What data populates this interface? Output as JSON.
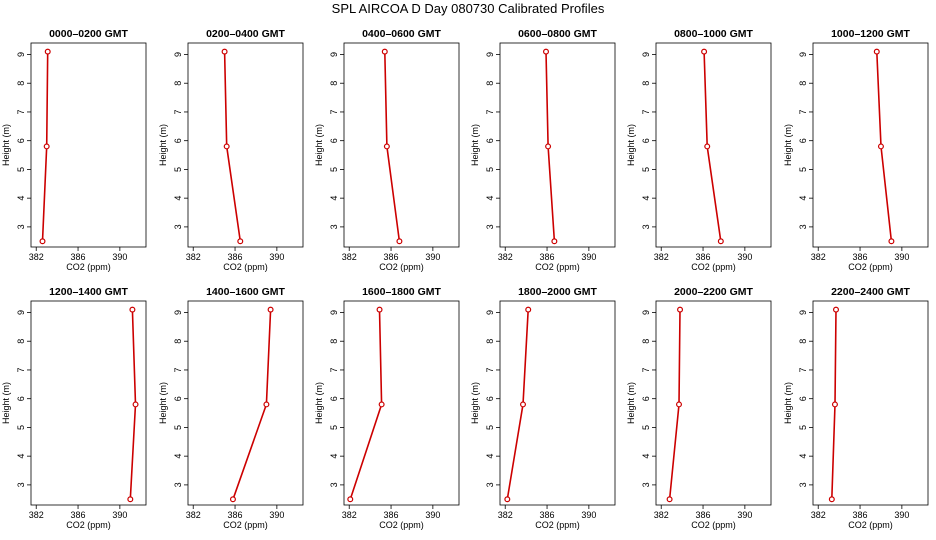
{
  "title": "SPL AIRCOA D  Day 080730  Calibrated Profiles",
  "chart_data": [
    {
      "type": "line",
      "title": "0000–0200 GMT",
      "xlabel": "CO2 (ppm)",
      "ylabel": "Height (m)",
      "xlim": [
        381.5,
        392.5
      ],
      "ylim": [
        2.3,
        9.4
      ],
      "xticks": [
        382,
        386,
        390
      ],
      "yticks": [
        3,
        4,
        5,
        6,
        7,
        8,
        9
      ],
      "series": [
        {
          "x": [
            382.6,
            383.0,
            383.1
          ],
          "y": [
            2.5,
            5.8,
            9.1
          ]
        }
      ]
    },
    {
      "type": "line",
      "title": "0200–0400 GMT",
      "xlabel": "CO2 (ppm)",
      "ylabel": "Height (m)",
      "xlim": [
        381.5,
        392.5
      ],
      "ylim": [
        2.3,
        9.4
      ],
      "xticks": [
        382,
        386,
        390
      ],
      "yticks": [
        3,
        4,
        5,
        6,
        7,
        8,
        9
      ],
      "series": [
        {
          "x": [
            386.5,
            385.2,
            385.0
          ],
          "y": [
            2.5,
            5.8,
            9.1
          ]
        }
      ]
    },
    {
      "type": "line",
      "title": "0400–0600 GMT",
      "xlabel": "CO2 (ppm)",
      "ylabel": "Height (m)",
      "xlim": [
        381.5,
        392.5
      ],
      "ylim": [
        2.3,
        9.4
      ],
      "xticks": [
        382,
        386,
        390
      ],
      "yticks": [
        3,
        4,
        5,
        6,
        7,
        8,
        9
      ],
      "series": [
        {
          "x": [
            386.8,
            385.6,
            385.4
          ],
          "y": [
            2.5,
            5.8,
            9.1
          ]
        }
      ]
    },
    {
      "type": "line",
      "title": "0600–0800 GMT",
      "xlabel": "CO2 (ppm)",
      "ylabel": "Height (m)",
      "xlim": [
        381.5,
        392.5
      ],
      "ylim": [
        2.3,
        9.4
      ],
      "xticks": [
        382,
        386,
        390
      ],
      "yticks": [
        3,
        4,
        5,
        6,
        7,
        8,
        9
      ],
      "series": [
        {
          "x": [
            386.7,
            386.1,
            385.9
          ],
          "y": [
            2.5,
            5.8,
            9.1
          ]
        }
      ]
    },
    {
      "type": "line",
      "title": "0800–1000 GMT",
      "xlabel": "CO2 (ppm)",
      "ylabel": "Height (m)",
      "xlim": [
        381.5,
        392.5
      ],
      "ylim": [
        2.3,
        9.4
      ],
      "xticks": [
        382,
        386,
        390
      ],
      "yticks": [
        3,
        4,
        5,
        6,
        7,
        8,
        9
      ],
      "series": [
        {
          "x": [
            387.7,
            386.4,
            386.1
          ],
          "y": [
            2.5,
            5.8,
            9.1
          ]
        }
      ]
    },
    {
      "type": "line",
      "title": "1000–1200 GMT",
      "xlabel": "CO2 (ppm)",
      "ylabel": "Height (m)",
      "xlim": [
        381.5,
        392.5
      ],
      "ylim": [
        2.3,
        9.4
      ],
      "xticks": [
        382,
        386,
        390
      ],
      "yticks": [
        3,
        4,
        5,
        6,
        7,
        8,
        9
      ],
      "series": [
        {
          "x": [
            389.0,
            388.0,
            387.6
          ],
          "y": [
            2.5,
            5.8,
            9.1
          ]
        }
      ]
    },
    {
      "type": "line",
      "title": "1200–1400 GMT",
      "xlabel": "CO2 (ppm)",
      "ylabel": "Height (m)",
      "xlim": [
        381.5,
        392.5
      ],
      "ylim": [
        2.3,
        9.4
      ],
      "xticks": [
        382,
        386,
        390
      ],
      "yticks": [
        3,
        4,
        5,
        6,
        7,
        8,
        9
      ],
      "series": [
        {
          "x": [
            391.0,
            391.5,
            391.2
          ],
          "y": [
            2.5,
            5.8,
            9.1
          ]
        }
      ]
    },
    {
      "type": "line",
      "title": "1400–1600 GMT",
      "xlabel": "CO2 (ppm)",
      "ylabel": "Height (m)",
      "xlim": [
        381.5,
        392.5
      ],
      "ylim": [
        2.3,
        9.4
      ],
      "xticks": [
        382,
        386,
        390
      ],
      "yticks": [
        3,
        4,
        5,
        6,
        7,
        8,
        9
      ],
      "series": [
        {
          "x": [
            385.8,
            389.0,
            389.4
          ],
          "y": [
            2.5,
            5.8,
            9.1
          ]
        }
      ]
    },
    {
      "type": "line",
      "title": "1600–1800 GMT",
      "xlabel": "CO2 (ppm)",
      "ylabel": "Height (m)",
      "xlim": [
        381.5,
        392.5
      ],
      "ylim": [
        2.3,
        9.4
      ],
      "xticks": [
        382,
        386,
        390
      ],
      "yticks": [
        3,
        4,
        5,
        6,
        7,
        8,
        9
      ],
      "series": [
        {
          "x": [
            382.1,
            385.1,
            384.9
          ],
          "y": [
            2.5,
            5.8,
            9.1
          ]
        }
      ]
    },
    {
      "type": "line",
      "title": "1800–2000 GMT",
      "xlabel": "CO2 (ppm)",
      "ylabel": "Height (m)",
      "xlim": [
        381.5,
        392.5
      ],
      "ylim": [
        2.3,
        9.4
      ],
      "xticks": [
        382,
        386,
        390
      ],
      "yticks": [
        3,
        4,
        5,
        6,
        7,
        8,
        9
      ],
      "series": [
        {
          "x": [
            382.2,
            383.7,
            384.2
          ],
          "y": [
            2.5,
            5.8,
            9.1
          ]
        }
      ]
    },
    {
      "type": "line",
      "title": "2000–2200 GMT",
      "xlabel": "CO2 (ppm)",
      "ylabel": "Height (m)",
      "xlim": [
        381.5,
        392.5
      ],
      "ylim": [
        2.3,
        9.4
      ],
      "xticks": [
        382,
        386,
        390
      ],
      "yticks": [
        3,
        4,
        5,
        6,
        7,
        8,
        9
      ],
      "series": [
        {
          "x": [
            382.8,
            383.7,
            383.8
          ],
          "y": [
            2.5,
            5.8,
            9.1
          ]
        }
      ]
    },
    {
      "type": "line",
      "title": "2200–2400 GMT",
      "xlabel": "CO2 (ppm)",
      "ylabel": "Height (m)",
      "xlim": [
        381.5,
        392.5
      ],
      "ylim": [
        2.3,
        9.4
      ],
      "xticks": [
        382,
        386,
        390
      ],
      "yticks": [
        3,
        4,
        5,
        6,
        7,
        8,
        9
      ],
      "series": [
        {
          "x": [
            383.3,
            383.6,
            383.7
          ],
          "y": [
            2.5,
            5.8,
            9.1
          ]
        }
      ]
    }
  ],
  "colors": {
    "line": "#cc0000",
    "marker": "#cc0000",
    "axis": "#000000"
  }
}
